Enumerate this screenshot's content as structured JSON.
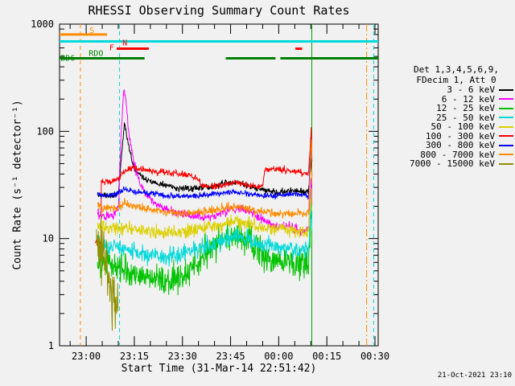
{
  "colors": {
    "background": "#f1f1f1",
    "axis": "#000000"
  },
  "legend": {
    "header1": "Det 1,3,4,5,6,9,",
    "header2": "FDecim 1, Att 0"
  },
  "footer": {
    "timestamp": "21-Oct-2021 23:10"
  },
  "chart_data": {
    "type": "line",
    "title": "RHESSI Observing Summary Count Rates",
    "xlabel": "Start Time (31-Mar-14 22:51:42)",
    "ylabel": "Count Rate (s⁻¹ detector⁻¹)",
    "y_scale": "log",
    "y_range": [
      1,
      1000
    ],
    "x_range": [
      -8.3,
      91
    ],
    "x_axis_note": "minutes relative to 23:00 31-Mar-14",
    "grid": false,
    "legend_position": "right",
    "x_ticks": [
      {
        "t": 0,
        "label": "23:00"
      },
      {
        "t": 15,
        "label": "23:15"
      },
      {
        "t": 30,
        "label": "23:30"
      },
      {
        "t": 45,
        "label": "23:45"
      },
      {
        "t": 60,
        "label": "00:00"
      },
      {
        "t": 75,
        "label": "00:15"
      },
      {
        "t": 90,
        "label": "00:30"
      }
    ],
    "y_ticks": [
      {
        "v": 1,
        "label": "1"
      },
      {
        "v": 10,
        "label": "10"
      },
      {
        "v": 100,
        "label": "100"
      },
      {
        "v": 1000,
        "label": "1000"
      }
    ],
    "series": [
      {
        "name": "3 - 6 keV",
        "color": "#000000",
        "noise": 0.035,
        "points": [
          [
            3.5,
            26
          ],
          [
            6,
            25
          ],
          [
            8,
            25
          ],
          [
            10,
            27
          ],
          [
            10.7,
            45
          ],
          [
            11.9,
            118
          ],
          [
            13,
            82
          ],
          [
            14.5,
            50
          ],
          [
            16,
            41
          ],
          [
            19,
            35
          ],
          [
            23,
            32
          ],
          [
            27,
            30
          ],
          [
            31,
            29
          ],
          [
            35,
            30
          ],
          [
            40,
            31
          ],
          [
            44,
            33
          ],
          [
            48,
            33
          ],
          [
            52,
            30
          ],
          [
            56,
            28
          ],
          [
            60,
            27
          ],
          [
            63,
            28
          ],
          [
            66,
            28
          ],
          [
            69.3,
            27
          ],
          [
            70.15,
            58
          ],
          [
            70.45,
            28
          ]
        ]
      },
      {
        "name": "6 - 12 keV",
        "color": "#ff00ff",
        "noise": 0.05,
        "points": [
          [
            3.5,
            17
          ],
          [
            6,
            16
          ],
          [
            8,
            16
          ],
          [
            10,
            19
          ],
          [
            10.8,
            80
          ],
          [
            11.7,
            255
          ],
          [
            12.4,
            190
          ],
          [
            13.5,
            85
          ],
          [
            15,
            48
          ],
          [
            17,
            32
          ],
          [
            19,
            25
          ],
          [
            22,
            21
          ],
          [
            26,
            18
          ],
          [
            30,
            17
          ],
          [
            34,
            16
          ],
          [
            38,
            16
          ],
          [
            42,
            17
          ],
          [
            45,
            19
          ],
          [
            48,
            19
          ],
          [
            51,
            18
          ],
          [
            54,
            16
          ],
          [
            57,
            14
          ],
          [
            60,
            13
          ],
          [
            64,
            13
          ],
          [
            67,
            12
          ],
          [
            69.3,
            12
          ],
          [
            70.15,
            42
          ],
          [
            70.45,
            13
          ]
        ]
      },
      {
        "name": "12 - 25 keV",
        "color": "#00c300",
        "noise": 0.17,
        "points": [
          [
            3.5,
            6.2
          ],
          [
            8,
            5.6
          ],
          [
            12,
            5.0
          ],
          [
            16,
            4.6
          ],
          [
            20,
            4.3
          ],
          [
            24,
            4.1
          ],
          [
            28,
            4.2
          ],
          [
            32,
            5.0
          ],
          [
            36,
            6.5
          ],
          [
            40,
            8.5
          ],
          [
            44,
            10.5
          ],
          [
            47,
            11
          ],
          [
            50,
            10
          ],
          [
            53,
            8.5
          ],
          [
            56,
            7
          ],
          [
            59,
            6.3
          ],
          [
            62,
            6
          ],
          [
            65,
            5.7
          ],
          [
            69.3,
            5.6
          ],
          [
            70.15,
            19
          ],
          [
            70.45,
            6
          ]
        ]
      },
      {
        "name": "25 - 50 keV",
        "color": "#00d9d9",
        "noise": 0.09,
        "points": [
          [
            3.5,
            9
          ],
          [
            8,
            8.5
          ],
          [
            12,
            8
          ],
          [
            16,
            7.4
          ],
          [
            20,
            7
          ],
          [
            24,
            6.8
          ],
          [
            28,
            7
          ],
          [
            32,
            7.6
          ],
          [
            36,
            8.4
          ],
          [
            40,
            9.2
          ],
          [
            44,
            10
          ],
          [
            47,
            10.3
          ],
          [
            50,
            9.8
          ],
          [
            53,
            9.2
          ],
          [
            56,
            8.8
          ],
          [
            59,
            8.4
          ],
          [
            62,
            8.1
          ],
          [
            65,
            7.9
          ],
          [
            69.3,
            7.7
          ],
          [
            70.15,
            26
          ],
          [
            70.45,
            8
          ]
        ]
      },
      {
        "name": "50 - 100 keV",
        "color": "#ddd000",
        "noise": 0.07,
        "points": [
          [
            3.5,
            13
          ],
          [
            8,
            12.6
          ],
          [
            12,
            12.4
          ],
          [
            16,
            12
          ],
          [
            20,
            11.6
          ],
          [
            24,
            11.2
          ],
          [
            28,
            11.4
          ],
          [
            32,
            11.8
          ],
          [
            36,
            12.4
          ],
          [
            40,
            13.2
          ],
          [
            44,
            14
          ],
          [
            47,
            14.4
          ],
          [
            50,
            13.8
          ],
          [
            53,
            13.2
          ],
          [
            56,
            12.8
          ],
          [
            59,
            12.3
          ],
          [
            62,
            12
          ],
          [
            65,
            11.7
          ],
          [
            69.3,
            11.4
          ],
          [
            70.15,
            30
          ],
          [
            70.45,
            12
          ]
        ]
      },
      {
        "name": "100 - 300 keV",
        "color": "#ff0000",
        "noise": 0.035,
        "points": [
          [
            2.8,
            9
          ],
          [
            4.6,
            9
          ],
          [
            4.7,
            34
          ],
          [
            8,
            34
          ],
          [
            10,
            36
          ],
          [
            11.5,
            42
          ],
          [
            14,
            46
          ],
          [
            18,
            44
          ],
          [
            22,
            42
          ],
          [
            26,
            41
          ],
          [
            30,
            40
          ],
          [
            34,
            38
          ],
          [
            36,
            32
          ],
          [
            38,
            31
          ],
          [
            42,
            31
          ],
          [
            45,
            33
          ],
          [
            48,
            33
          ],
          [
            51,
            31
          ],
          [
            55,
            30
          ],
          [
            55.6,
            44
          ],
          [
            58,
            45
          ],
          [
            61,
            44
          ],
          [
            64,
            43
          ],
          [
            67,
            41
          ],
          [
            69.3,
            40
          ],
          [
            70.15,
            112
          ],
          [
            70.45,
            40
          ]
        ]
      },
      {
        "name": "300 - 800 keV",
        "color": "#0000ff",
        "noise": 0.03,
        "points": [
          [
            3.5,
            26
          ],
          [
            6,
            25
          ],
          [
            9,
            26
          ],
          [
            12,
            29
          ],
          [
            14,
            28
          ],
          [
            17,
            27
          ],
          [
            21,
            26
          ],
          [
            25,
            25
          ],
          [
            30,
            25
          ],
          [
            35,
            25
          ],
          [
            40,
            26
          ],
          [
            44,
            27
          ],
          [
            47,
            27
          ],
          [
            51,
            26
          ],
          [
            55,
            25
          ],
          [
            59,
            25
          ],
          [
            63,
            26
          ],
          [
            66,
            26
          ],
          [
            69.3,
            25
          ],
          [
            70.15,
            88
          ],
          [
            70.45,
            26
          ]
        ]
      },
      {
        "name": "800 - 7000 keV",
        "color": "#ff8c00",
        "noise": 0.045,
        "points": [
          [
            3.5,
            20
          ],
          [
            6,
            19
          ],
          [
            9,
            19.5
          ],
          [
            12,
            21
          ],
          [
            15,
            20
          ],
          [
            18,
            19
          ],
          [
            22,
            18
          ],
          [
            26,
            17.5
          ],
          [
            30,
            17
          ],
          [
            34,
            17.3
          ],
          [
            38,
            18
          ],
          [
            42,
            18.8
          ],
          [
            45,
            19.6
          ],
          [
            48,
            19.6
          ],
          [
            51,
            18.8
          ],
          [
            54,
            18
          ],
          [
            57,
            17.6
          ],
          [
            60,
            17.2
          ],
          [
            64,
            17
          ],
          [
            67,
            17
          ],
          [
            69.3,
            17
          ],
          [
            70.15,
            96
          ],
          [
            70.45,
            18
          ]
        ]
      },
      {
        "name": "7000 - 15000 keV",
        "color": "#8f8f00",
        "noise": 0.32,
        "points": [
          [
            3.2,
            12
          ],
          [
            4.5,
            9.5
          ],
          [
            6,
            6.5
          ],
          [
            7.5,
            4
          ],
          [
            9,
            2.6
          ],
          [
            10,
            2.2
          ]
        ]
      }
    ],
    "events": [
      {
        "t": -1.8,
        "color": "#ff8c00",
        "style": "dashed"
      },
      {
        "t": 10.4,
        "color": "#00d9d9",
        "style": "dashed"
      },
      {
        "t": 70.3,
        "color": "#009b00",
        "style": "solid"
      },
      {
        "t": 87.4,
        "color": "#ff8c00",
        "style": "dashdot"
      },
      {
        "t": 89.6,
        "color": "#00d9d9",
        "style": "dashed"
      }
    ],
    "bars": [
      {
        "name": "flag-s",
        "color": "#ff8c00",
        "level": 800,
        "segments": [
          [
            -8.3,
            6.5
          ]
        ],
        "labels": [
          {
            "text": "S",
            "t": 1.0,
            "dy": -2
          }
        ]
      },
      {
        "name": "flag-aspect",
        "color": "#00d9d9",
        "level": 690,
        "segments": [
          [
            -8.3,
            91
          ]
        ],
        "labels": []
      },
      {
        "name": "flag-flare",
        "color": "#ff0000",
        "level": 590,
        "segments": [
          [
            9.5,
            19.5
          ],
          [
            65.2,
            67.3
          ]
        ],
        "labels": [
          {
            "text": "N",
            "t": 11.3,
            "dy": -4
          },
          {
            "text": "F",
            "t": 7.2,
            "dy": 2
          }
        ]
      },
      {
        "name": "flag-rdo",
        "color": "#007f00",
        "level": 480,
        "segments": [
          [
            -8.3,
            18.2
          ],
          [
            43.5,
            59.0
          ],
          [
            60.5,
            91
          ]
        ],
        "labels": [
          {
            "text": "RDO",
            "t": 0.8,
            "dy": -3
          },
          {
            "text": "BD6",
            "t": -8.0,
            "dy": 3
          }
        ]
      }
    ]
  }
}
